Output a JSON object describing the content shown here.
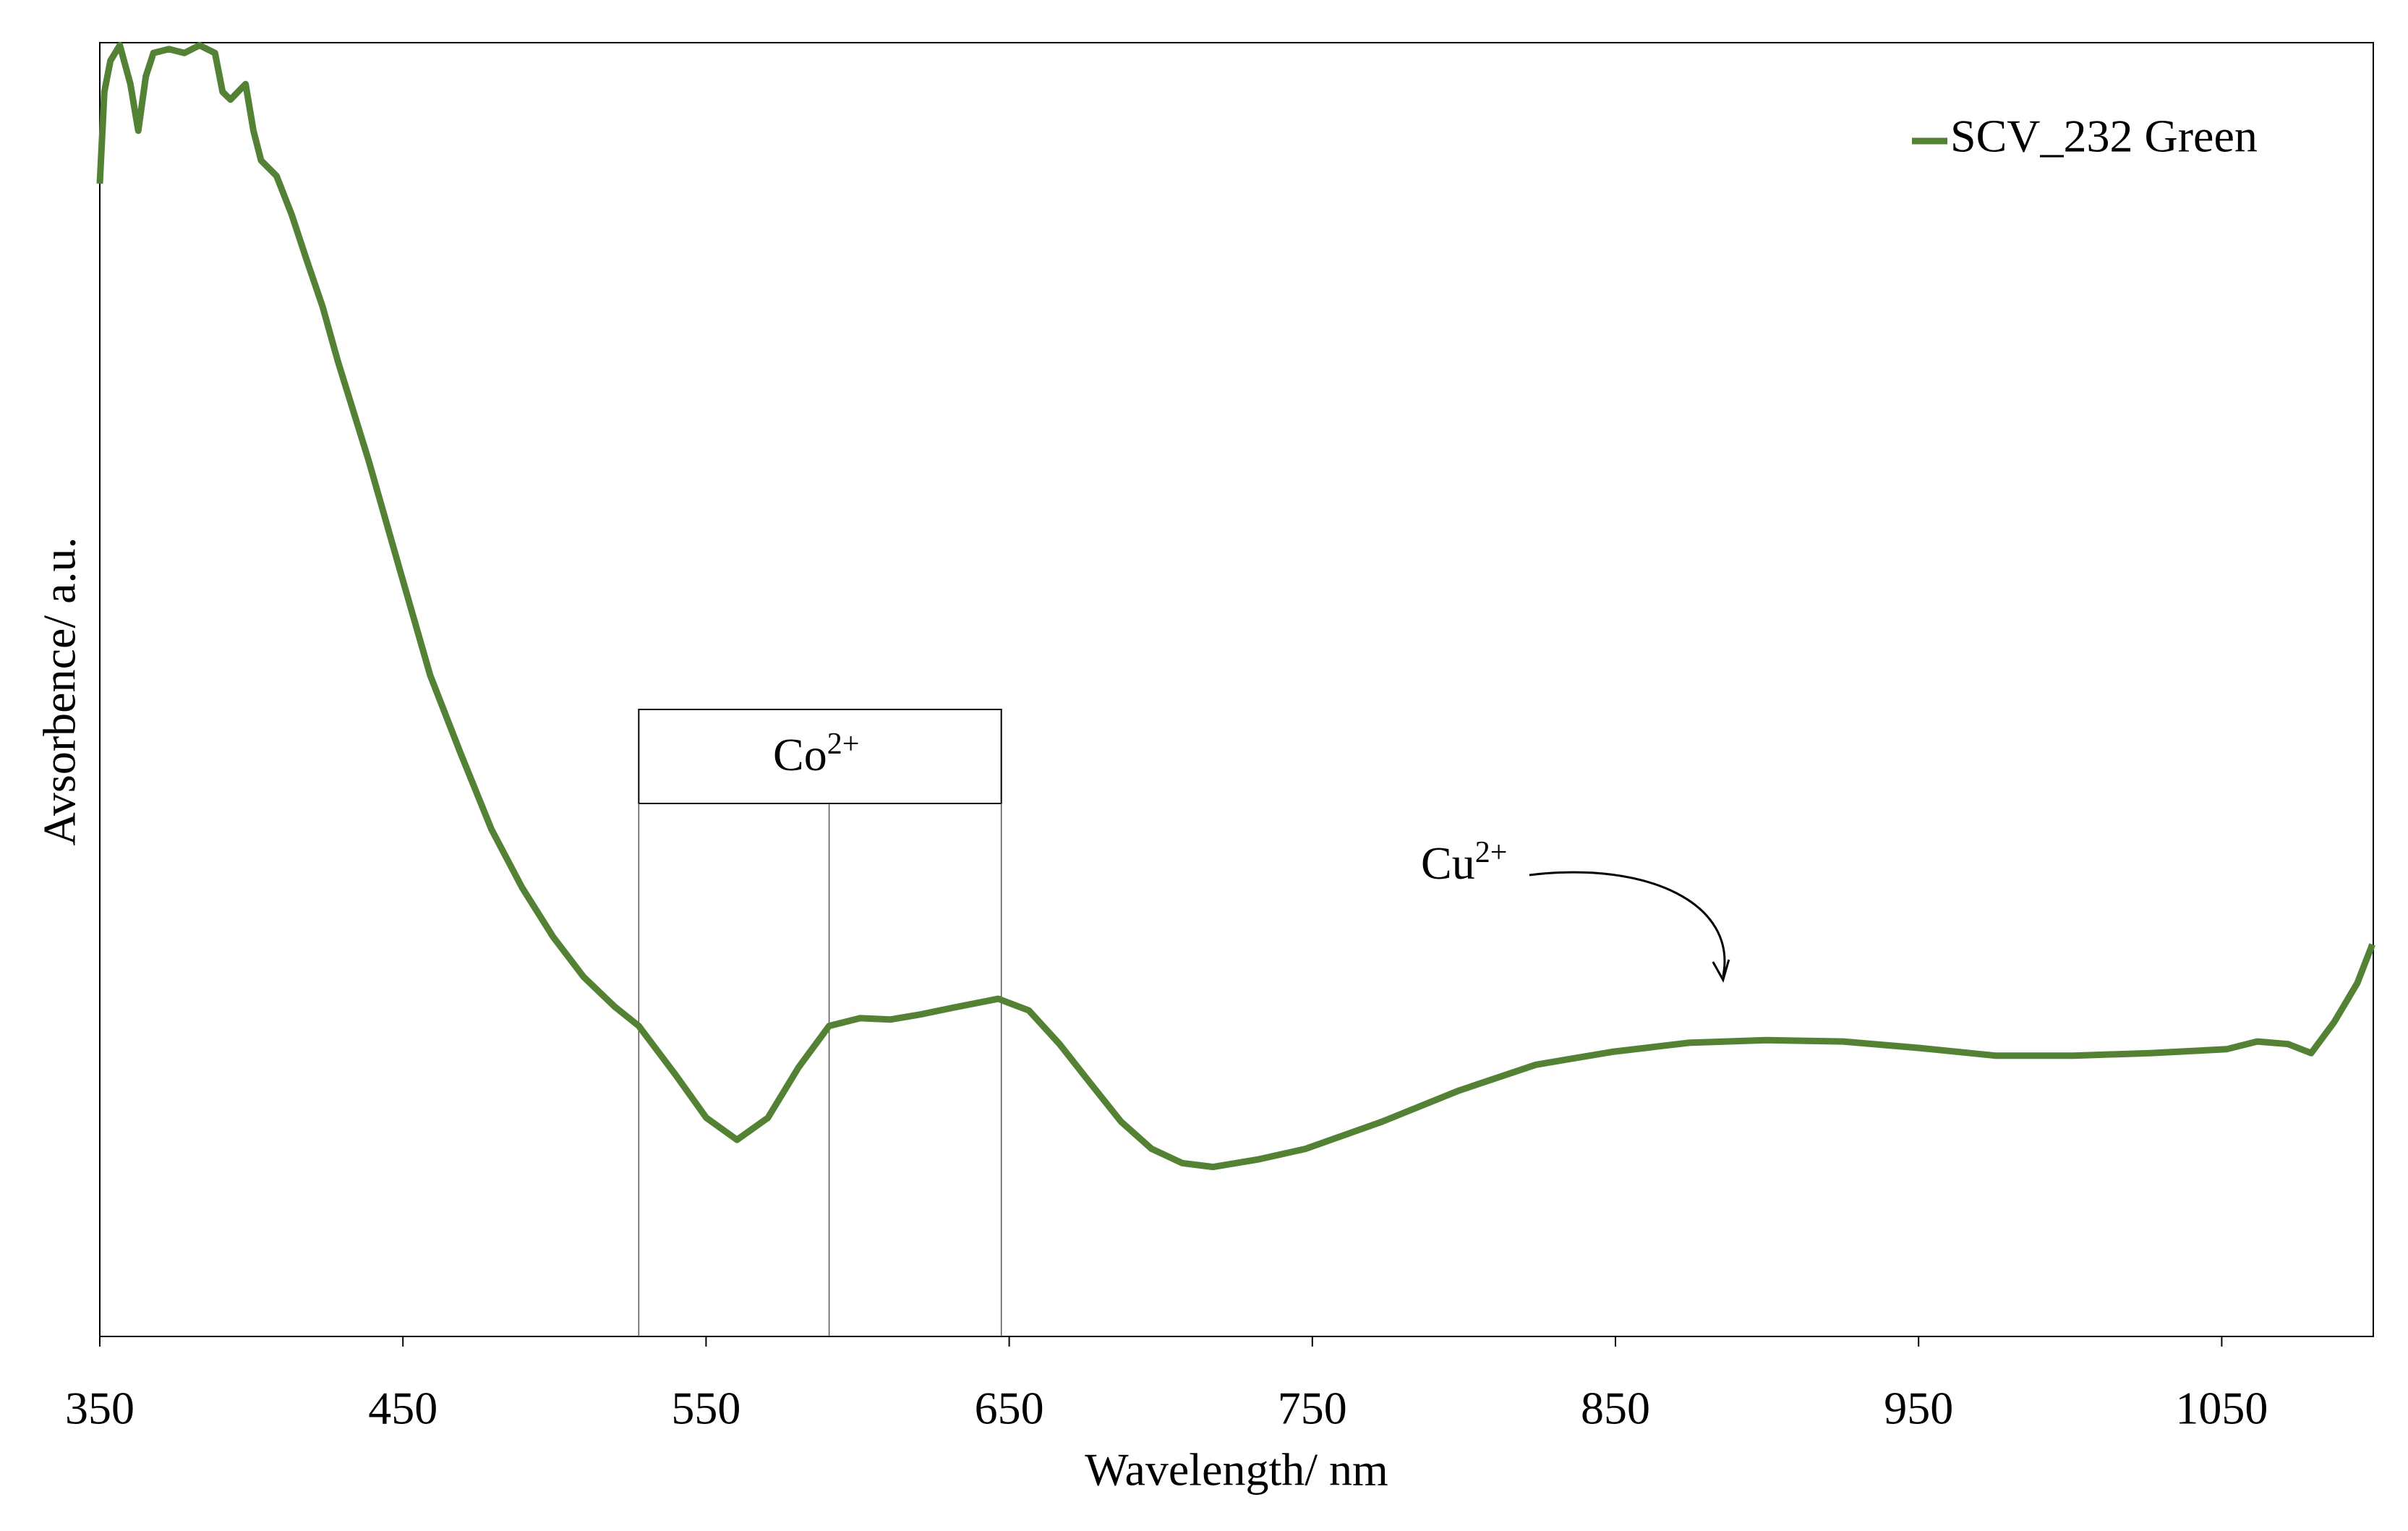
{
  "chart_data": {
    "type": "line",
    "xlabel": "Wavelength/ nm",
    "ylabel": "Avsorbence/ a.u.",
    "xlim": [
      350,
      1100
    ],
    "xticks": [
      350,
      450,
      550,
      650,
      750,
      850,
      950,
      1050
    ],
    "ylim": [
      0,
      1
    ],
    "yticks": [],
    "legend": "top-right",
    "series": [
      {
        "name": "SCV_232 Green",
        "color": "#548235",
        "x": [
          350,
          351.5,
          353.5,
          356.6,
          360.1,
          362.7,
          365.2,
          367.7,
          372.8,
          377.9,
          382.9,
          388.0,
          390.5,
          393.1,
          398.1,
          400.7,
          403.2,
          408.3,
          413.3,
          418.4,
          423.5,
          428.5,
          438.7,
          448.8,
          459.0,
          469.0,
          479.2,
          489.3,
          499.5,
          509.6,
          519.8,
          527.8,
          540.0,
          550.1,
          560.2,
          570.4,
          580.5,
          590.6,
          600.8,
          610.9,
          621.0,
          631.2,
          646.4,
          656.5,
          666.6,
          676.7,
          686.9,
          697.0,
          707.1,
          717.3,
          732.5,
          747.7,
          773.0,
          798.3,
          823.7,
          849.0,
          874.3,
          899.6,
          925.0,
          950.3,
          975.6,
          1001.0,
          1026.3,
          1051.6,
          1061.7,
          1071.9,
          1079.5,
          1087.1,
          1094.7,
          1099.7
        ],
        "values": [
          0.891,
          0.962,
          0.986,
          0.998,
          0.968,
          0.932,
          0.974,
          0.992,
          0.995,
          0.992,
          0.998,
          0.992,
          0.962,
          0.956,
          0.968,
          0.932,
          0.909,
          0.897,
          0.867,
          0.831,
          0.796,
          0.754,
          0.677,
          0.594,
          0.511,
          0.451,
          0.392,
          0.347,
          0.309,
          0.278,
          0.255,
          0.24,
          0.202,
          0.169,
          0.152,
          0.169,
          0.208,
          0.24,
          0.246,
          0.245,
          0.249,
          0.254,
          0.261,
          0.252,
          0.226,
          0.196,
          0.166,
          0.145,
          0.134,
          0.131,
          0.137,
          0.145,
          0.166,
          0.19,
          0.21,
          0.22,
          0.227,
          0.229,
          0.228,
          0.223,
          0.217,
          0.217,
          0.219,
          0.222,
          0.228,
          0.226,
          0.219,
          0.243,
          0.273,
          0.303
        ]
      }
    ],
    "annotations": [
      {
        "text": "Co",
        "sup": "2+",
        "x": [
          527.8,
          590.6,
          647.4
        ]
      },
      {
        "text": "Cu",
        "sup": "2+",
        "x": [
          885.5
        ]
      }
    ]
  }
}
